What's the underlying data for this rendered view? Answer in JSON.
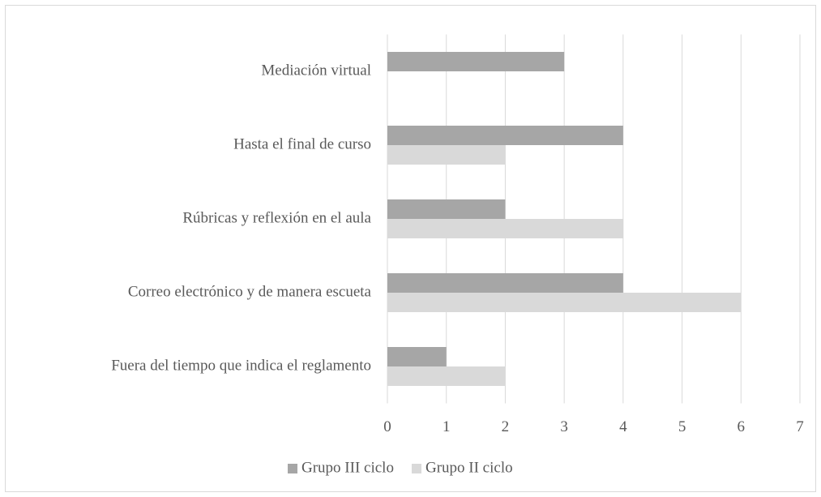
{
  "chart_data": {
    "type": "barh",
    "categories": [
      "Mediación virtual",
      "Hasta el final de curso",
      "Rúbricas y reflexión en el aula",
      "Correo electrónico y de manera escueta",
      "Fuera del tiempo que indica el reglamento"
    ],
    "series": [
      {
        "name": "Grupo III ciclo",
        "color": "#a6a6a6",
        "values": [
          3,
          4,
          2,
          4,
          1
        ]
      },
      {
        "name": "Grupo II ciclo",
        "color": "#d9d9d9",
        "values": [
          0,
          2,
          4,
          6,
          2
        ]
      }
    ],
    "xlim": [
      0,
      7
    ],
    "xticks": [
      0,
      1,
      2,
      3,
      4,
      5,
      6,
      7
    ],
    "grid": true,
    "legend": "bottom"
  }
}
